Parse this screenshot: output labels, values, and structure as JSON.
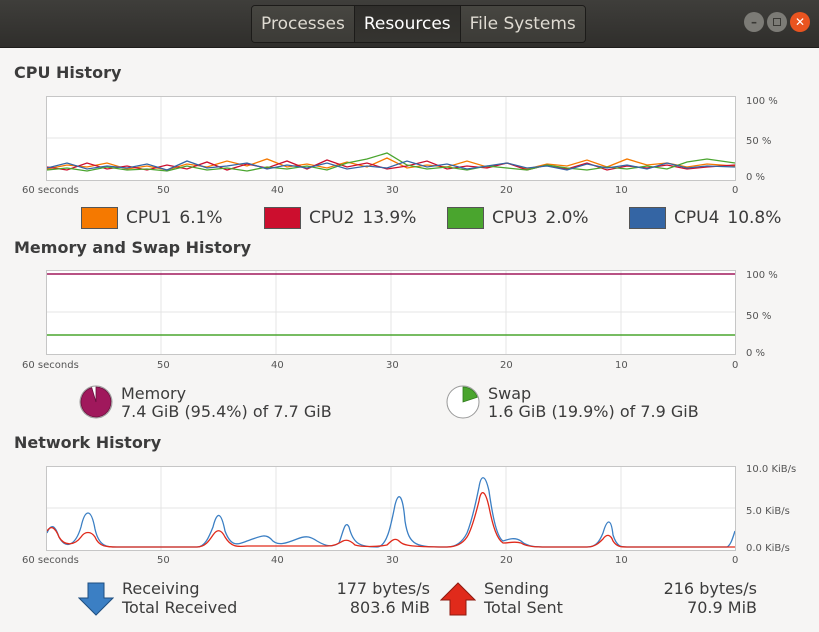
{
  "header": {
    "tabs": [
      {
        "label": "Processes",
        "active": false
      },
      {
        "label": "Resources",
        "active": true
      },
      {
        "label": "File Systems",
        "active": false
      }
    ],
    "window_buttons": [
      "minimize",
      "maximize",
      "close"
    ]
  },
  "cpu": {
    "title": "CPU History",
    "x_labels": [
      "60 seconds",
      "50",
      "40",
      "30",
      "20",
      "10",
      "0"
    ],
    "y_labels": [
      "100 %",
      "50 %",
      "0 %"
    ],
    "legend": [
      {
        "name": "CPU1",
        "value": "6.1%",
        "color": "#f57900"
      },
      {
        "name": "CPU2",
        "value": "13.9%",
        "color": "#cc0e2e"
      },
      {
        "name": "CPU3",
        "value": "2.0%",
        "color": "#4aa52e"
      },
      {
        "name": "CPU4",
        "value": "10.8%",
        "color": "#3465a4"
      }
    ]
  },
  "memory": {
    "title": "Memory and Swap History",
    "x_labels": [
      "60 seconds",
      "50",
      "40",
      "30",
      "20",
      "10",
      "0"
    ],
    "y_labels": [
      "100 %",
      "50 %",
      "0 %"
    ],
    "memory_label": "Memory",
    "memory_value": "7.4 GiB (95.4%) of 7.7 GiB",
    "memory_fraction": 0.954,
    "memory_color": "#a0185c",
    "swap_label": "Swap",
    "swap_value": "1.6 GiB (19.9%) of 7.9 GiB",
    "swap_fraction": 0.199,
    "swap_color": "#4aa52e"
  },
  "network": {
    "title": "Network History",
    "x_labels": [
      "60 seconds",
      "50",
      "40",
      "30",
      "20",
      "10",
      "0"
    ],
    "y_labels": [
      "10.0 KiB/s",
      "5.0 KiB/s",
      "0.0 KiB/s"
    ],
    "receiving_label": "Receiving",
    "total_received_label": "Total Received",
    "receiving_rate": "177 bytes/s",
    "total_received": "803.6 MiB",
    "sending_label": "Sending",
    "total_sent_label": "Total Sent",
    "sending_rate": "216 bytes/s",
    "total_sent": "70.9 MiB",
    "receive_color": "#3b7fc4",
    "send_color": "#e02a1b"
  }
}
